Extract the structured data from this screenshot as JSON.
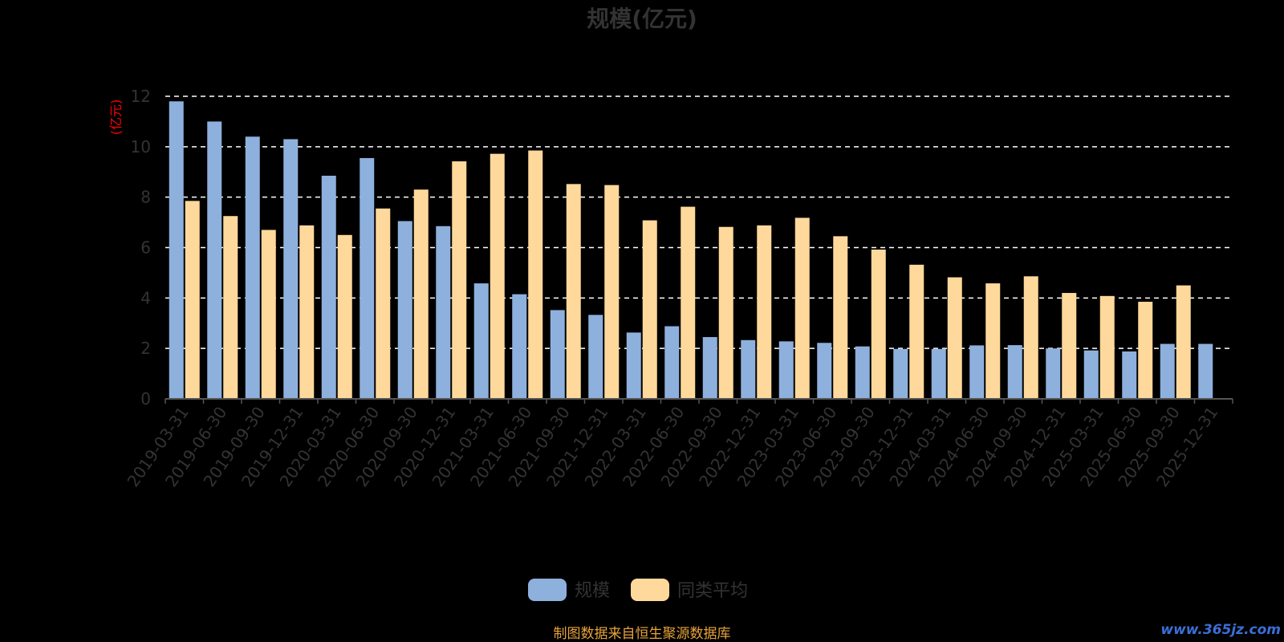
{
  "chart_data": {
    "type": "bar",
    "title": "规模(亿元)",
    "ylabel": "(亿元)",
    "ylim": [
      0,
      12
    ],
    "yticks": [
      0,
      2,
      4,
      6,
      8,
      10,
      12
    ],
    "grid": true,
    "legend_position": "bottom-center",
    "categories": [
      "2019-03-31",
      "2019-06-30",
      "2019-09-30",
      "2019-12-31",
      "2020-03-31",
      "2020-06-30",
      "2020-09-30",
      "2020-12-31",
      "2021-03-31",
      "2021-06-30",
      "2021-09-30",
      "2021-12-31",
      "2022-03-31",
      "2022-06-30",
      "2022-09-30",
      "2022-12-31",
      "2023-03-31",
      "2023-06-30",
      "2023-09-30",
      "2023-12-31",
      "2024-03-31",
      "2024-06-30",
      "2024-09-30",
      "2024-12-31",
      "2025-03-31",
      "2025-06-30",
      "2025-09-30",
      "2025-12-31"
    ],
    "series": [
      {
        "name": "规模",
        "color": "#8eb0dd",
        "values": [
          11.8,
          11.0,
          10.4,
          10.3,
          8.85,
          9.55,
          7.05,
          6.85,
          4.58,
          4.15,
          3.52,
          3.33,
          2.63,
          2.88,
          2.45,
          2.33,
          2.28,
          2.22,
          2.08,
          1.98,
          1.98,
          2.12,
          2.13,
          2.0,
          1.92,
          1.88,
          2.18,
          2.18
        ]
      },
      {
        "name": "同类平均",
        "color": "#ffd99b",
        "values": [
          7.85,
          7.25,
          6.7,
          6.88,
          6.5,
          7.55,
          8.3,
          9.42,
          9.72,
          9.85,
          8.52,
          8.48,
          7.08,
          7.62,
          6.82,
          6.88,
          7.18,
          6.45,
          5.92,
          5.32,
          4.82,
          4.58,
          4.86,
          4.2,
          4.08,
          3.85,
          4.5,
          null
        ]
      }
    ]
  },
  "footer": {
    "source_note": "制图数据来自恒生聚源数据库",
    "watermark": "www.365jz.com"
  }
}
